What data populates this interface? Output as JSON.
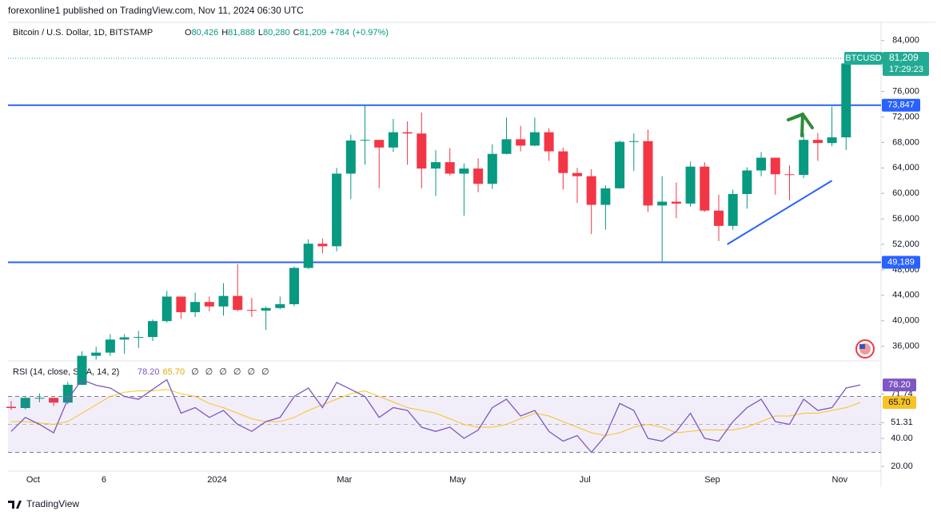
{
  "header": {
    "publisher": "forexonline1 published on TradingView.com, Nov 11, 2024 06:30 UTC",
    "brand": "TradingView"
  },
  "chart_data": [
    {
      "type": "candlestick",
      "title": "Bitcoin / U.S. Dollar, 1D, BITSTAMP",
      "legend": {
        "open": {
          "key": "O",
          "label": "80,426"
        },
        "high": {
          "key": "H",
          "label": "81,888"
        },
        "low": {
          "key": "L",
          "label": "80,280"
        },
        "close": {
          "key": "C",
          "label": "81,209"
        },
        "change": "+784",
        "change_pct": "(+0.97%)"
      },
      "categories": [
        null,
        null,
        "Oct",
        null,
        null,
        null,
        null,
        "6",
        null,
        null,
        null,
        null,
        null,
        null,
        null,
        "2024",
        null,
        null,
        null,
        null,
        null,
        null,
        null,
        null,
        "Mar",
        null,
        null,
        null,
        null,
        null,
        null,
        null,
        "May",
        null,
        null,
        null,
        null,
        null,
        null,
        null,
        null,
        "Jul",
        null,
        null,
        null,
        null,
        null,
        null,
        null,
        null,
        "Sep",
        null,
        null,
        null,
        null,
        null,
        null,
        null,
        null,
        "Nov",
        null
      ],
      "open": [
        26500,
        26300,
        27900,
        27900,
        27150,
        29950,
        34500,
        35000,
        37050,
        37400,
        37450,
        39950,
        43800,
        41350,
        42950,
        42250,
        43900,
        41700,
        41600,
        42000,
        42600,
        48300,
        52100,
        51700,
        63100,
        68300,
        68400,
        67200,
        69600,
        69400,
        63900,
        64900,
        63100,
        63900,
        61500,
        66200,
        68500,
        67500,
        69600,
        66600,
        63200,
        62700,
        58200,
        60800,
        68100,
        68200,
        58100,
        58700,
        58400,
        64200,
        57300,
        54900,
        59900,
        63600,
        65600,
        63000,
        62900,
        68400,
        67900,
        68800,
        80426
      ],
      "high": [
        27400,
        28000,
        28600,
        27900,
        30400,
        35200,
        35900,
        37900,
        37900,
        38400,
        40200,
        44700,
        43800,
        44400,
        43800,
        45900,
        48900,
        43600,
        42250,
        43800,
        48500,
        52800,
        52900,
        64000,
        69200,
        73800,
        68400,
        71700,
        71300,
        72700,
        66800,
        67100,
        64700,
        65500,
        67700,
        71900,
        70600,
        71900,
        70200,
        67200,
        64000,
        63800,
        61300,
        68300,
        69400,
        70000,
        62700,
        61700,
        65000,
        64900,
        59800,
        60600,
        64100,
        66500,
        65600,
        64400,
        69500,
        69500,
        73600,
        80400,
        81888
      ],
      "low": [
        26000,
        26100,
        27200,
        26600,
        26900,
        29900,
        33900,
        34500,
        34800,
        35700,
        36800,
        39700,
        40300,
        40600,
        41500,
        40800,
        41500,
        40600,
        38550,
        41800,
        42300,
        48100,
        50600,
        50900,
        59100,
        64500,
        60800,
        66500,
        64500,
        60800,
        59600,
        62800,
        56500,
        60200,
        60700,
        66100,
        66600,
        67400,
        65100,
        60600,
        58500,
        53600,
        54300,
        60700,
        63500,
        57100,
        49100,
        56100,
        57900,
        57100,
        52500,
        54300,
        57600,
        62700,
        59800,
        58900,
        62400,
        65100,
        67400,
        66800,
        80280
      ],
      "close": [
        26300,
        27900,
        27900,
        27150,
        29950,
        34500,
        35000,
        37050,
        37400,
        37450,
        39950,
        43800,
        41350,
        42950,
        42250,
        43900,
        41700,
        41600,
        42000,
        42600,
        48300,
        52100,
        51700,
        63100,
        68300,
        68400,
        67200,
        69600,
        69400,
        63900,
        64900,
        63100,
        63900,
        61500,
        66200,
        68500,
        67500,
        69600,
        66600,
        63200,
        62700,
        58200,
        60800,
        68100,
        68200,
        58100,
        58700,
        58400,
        64200,
        57300,
        54900,
        59900,
        63600,
        65600,
        63000,
        62900,
        68400,
        67900,
        68800,
        80400,
        81209
      ],
      "up_color": "#089981",
      "down_color": "#f23645",
      "ylim": [
        33700,
        86600
      ],
      "yticks": [
        {
          "value": 36000,
          "label": "36,000"
        },
        {
          "value": 40000,
          "label": "40,000"
        },
        {
          "value": 44000,
          "label": "44,000"
        },
        {
          "value": 48000,
          "label": "48,000"
        },
        {
          "value": 52000,
          "label": "52,000"
        },
        {
          "value": 56000,
          "label": "56,000"
        },
        {
          "value": 60000,
          "label": "60,000"
        },
        {
          "value": 64000,
          "label": "64,000"
        },
        {
          "value": 68000,
          "label": "68,000"
        },
        {
          "value": 72000,
          "label": "72,000"
        },
        {
          "value": 76000,
          "label": "76,000"
        },
        {
          "value": 80000,
          "label": "80,000"
        },
        {
          "value": 84000,
          "label": "84,000"
        }
      ],
      "hlines": [
        {
          "value": 73847,
          "label": "73,847",
          "color": "#2962ff"
        },
        {
          "value": 49189,
          "label": "49,189",
          "color": "#2962ff"
        }
      ],
      "trendline": {
        "x": [
          50.6,
          58
        ],
        "y": [
          52000,
          62000
        ],
        "color": "#2962ff"
      },
      "last_price": {
        "symbol": "BTCUSD",
        "label": "81,209",
        "countdown": "17:29:23",
        "color": "#22ab94"
      },
      "grid": false
    },
    {
      "type": "line",
      "title": "RSI (14, close, SMA, 14, 2)",
      "legend_symbols": [
        "∅",
        "∅",
        "∅",
        "∅",
        "∅",
        "∅"
      ],
      "series": [
        {
          "color": "#7e57c2",
          "last_label": "78.20",
          "values": [
            45,
            55,
            50,
            44,
            68,
            82,
            78,
            76,
            70,
            68,
            75,
            82,
            58,
            62,
            55,
            60,
            50,
            45,
            52,
            55,
            70,
            76,
            62,
            80,
            75,
            70,
            55,
            62,
            60,
            48,
            45,
            48,
            40,
            46,
            62,
            68,
            56,
            60,
            45,
            38,
            42,
            30,
            42,
            65,
            60,
            40,
            38,
            45,
            58,
            40,
            38,
            52,
            62,
            68,
            52,
            50,
            68,
            60,
            62,
            76,
            78.2
          ]
        },
        {
          "color": "#f7c325",
          "last_label": "65.70",
          "values": [
            52,
            52,
            51,
            50,
            52,
            58,
            64,
            70,
            73,
            74,
            74,
            75,
            72,
            70,
            65,
            62,
            58,
            54,
            52,
            52,
            55,
            60,
            64,
            68,
            72,
            74,
            70,
            66,
            62,
            60,
            58,
            54,
            50,
            48,
            48,
            50,
            54,
            58,
            56,
            52,
            48,
            44,
            42,
            44,
            48,
            50,
            48,
            44,
            45,
            46,
            46,
            46,
            48,
            52,
            56,
            56,
            58,
            58,
            60,
            62,
            65.7
          ]
        }
      ],
      "bands": [
        70,
        50,
        30
      ],
      "ylim": [
        16.6,
        93.7
      ],
      "yticks": [
        {
          "value": 20,
          "label": "20.00"
        },
        {
          "value": 40,
          "label": "40.00"
        },
        51.31,
        71.74
      ]
    }
  ]
}
